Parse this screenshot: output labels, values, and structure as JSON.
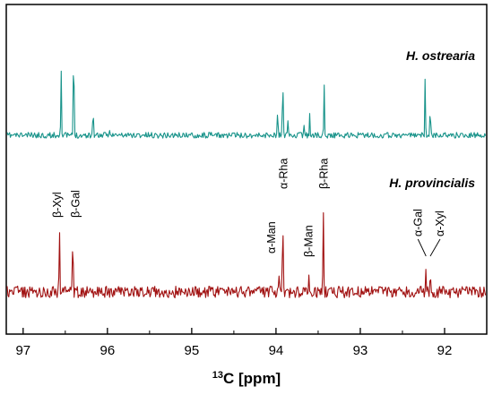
{
  "chart_data": {
    "type": "line",
    "title": "",
    "xlabel": {
      "sup": "13",
      "main": "C  [ppm]"
    },
    "ylabel": "",
    "xlim": [
      97.2,
      91.5
    ],
    "x_reversed": true,
    "xticks": [
      97,
      96,
      95,
      94,
      93,
      92
    ],
    "xtick_labels": [
      "97",
      "96",
      "95",
      "94",
      "93",
      "92"
    ],
    "series": [
      {
        "name": "H. ostrearia",
        "color": "#18938a",
        "baseline": 0.0,
        "peaks": [
          {
            "x": 96.55,
            "y": 0.58
          },
          {
            "x": 96.4,
            "y": 0.88
          },
          {
            "x": 96.17,
            "y": 0.26
          },
          {
            "x": 95.97,
            "y": 0.07
          },
          {
            "x": 93.98,
            "y": 0.2
          },
          {
            "x": 93.92,
            "y": 0.55
          },
          {
            "x": 93.86,
            "y": 0.12
          },
          {
            "x": 93.67,
            "y": 0.11
          },
          {
            "x": 93.6,
            "y": 0.18
          },
          {
            "x": 93.43,
            "y": 0.42
          },
          {
            "x": 92.23,
            "y": 0.47
          },
          {
            "x": 92.17,
            "y": 0.29
          }
        ]
      },
      {
        "name": "H. provincialis",
        "color": "#a11212",
        "baseline": 0.0,
        "peaks": [
          {
            "x": 96.57,
            "y": 0.82
          },
          {
            "x": 96.41,
            "y": 0.82
          },
          {
            "x": 93.96,
            "y": 0.25
          },
          {
            "x": 93.92,
            "y": 1.12
          },
          {
            "x": 93.61,
            "y": 0.21
          },
          {
            "x": 93.44,
            "y": 1.1
          },
          {
            "x": 92.22,
            "y": 0.3
          },
          {
            "x": 92.17,
            "y": 0.3
          }
        ],
        "annotations": [
          {
            "label": "β-Xyl",
            "x": 96.57
          },
          {
            "label": "β-Gal",
            "x": 96.41
          },
          {
            "label": "α-Man",
            "x": 93.98
          },
          {
            "label": "α-Rha",
            "x": 93.92
          },
          {
            "label": "β-Man",
            "x": 93.61
          },
          {
            "label": "β-Rha",
            "x": 93.44
          },
          {
            "label": "α-Gal",
            "x": 92.22
          },
          {
            "label": "α-Xyl",
            "x": 92.17
          }
        ]
      }
    ]
  }
}
